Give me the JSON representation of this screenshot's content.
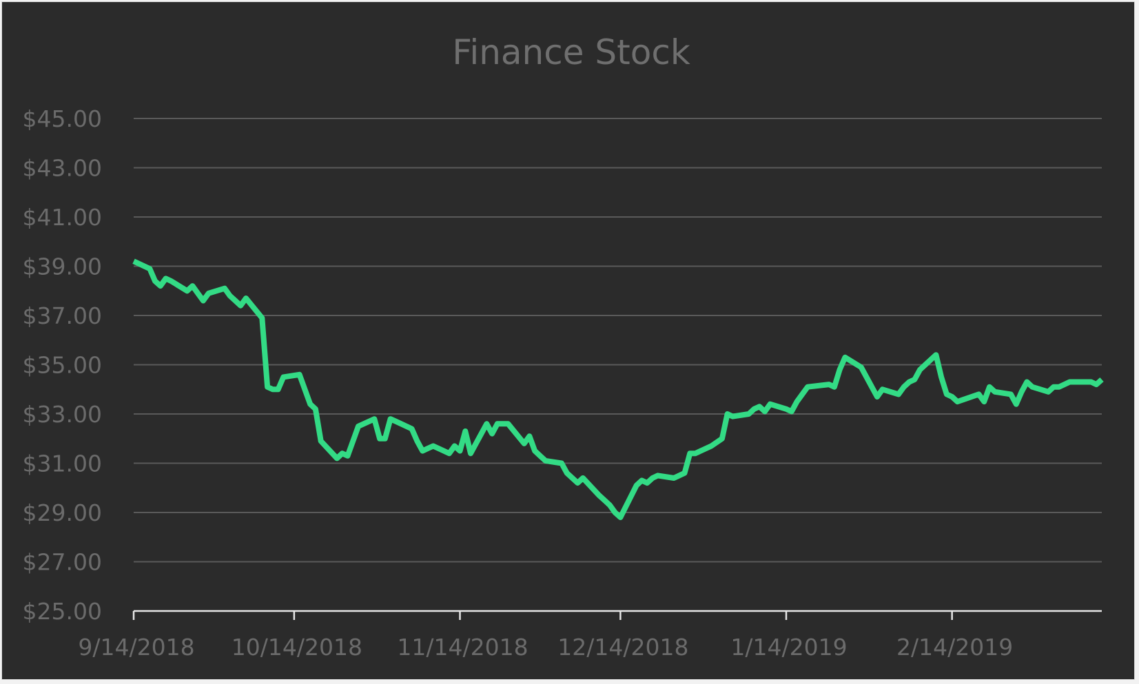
{
  "chart_data": {
    "type": "line",
    "title": "Finance Stock",
    "xlabel": "",
    "ylabel": "",
    "ylim": [
      25,
      45
    ],
    "y_ticks": [
      25,
      27,
      29,
      31,
      33,
      35,
      37,
      39,
      41,
      43,
      45
    ],
    "y_tick_labels": [
      "$25.00",
      "$27.00",
      "$29.00",
      "$31.00",
      "$33.00",
      "$35.00",
      "$37.00",
      "$39.00",
      "$41.00",
      "$43.00",
      "$45.00"
    ],
    "x_ticks": [
      "2018-09-14",
      "2018-10-14",
      "2018-11-14",
      "2018-12-14",
      "2019-01-14",
      "2019-02-14"
    ],
    "x_tick_labels": [
      "9/14/2018",
      "10/14/2018",
      "11/14/2018",
      "12/14/2018",
      "1/14/2019",
      "2/14/2019"
    ],
    "xlim": [
      "2018-09-14",
      "2019-03-14"
    ],
    "grid": true,
    "legend": "none",
    "colors": {
      "line": "#33db85",
      "background": "#2b2b2b",
      "grid": "#5a5a5a",
      "axis": "#e6e6e6",
      "text": "#6b6b6b"
    },
    "series": [
      {
        "x": [
          "2018-09-14",
          "2018-09-17",
          "2018-09-18",
          "2018-09-19",
          "2018-09-20",
          "2018-09-21",
          "2018-09-24",
          "2018-09-25",
          "2018-09-26",
          "2018-09-27",
          "2018-09-28",
          "2018-10-01",
          "2018-10-02",
          "2018-10-03",
          "2018-10-04",
          "2018-10-05",
          "2018-10-08",
          "2018-10-09",
          "2018-10-10",
          "2018-10-11",
          "2018-10-12",
          "2018-10-15",
          "2018-10-16",
          "2018-10-17",
          "2018-10-18",
          "2018-10-19",
          "2018-10-22",
          "2018-10-23",
          "2018-10-24",
          "2018-10-25",
          "2018-10-26",
          "2018-10-29",
          "2018-10-30",
          "2018-10-31",
          "2018-11-01",
          "2018-11-02",
          "2018-11-05",
          "2018-11-06",
          "2018-11-07",
          "2018-11-08",
          "2018-11-09",
          "2018-11-12",
          "2018-11-13",
          "2018-11-14",
          "2018-11-15",
          "2018-11-16",
          "2018-11-19",
          "2018-11-20",
          "2018-11-21",
          "2018-11-23",
          "2018-11-26",
          "2018-11-27",
          "2018-11-28",
          "2018-11-29",
          "2018-11-30",
          "2018-12-03",
          "2018-12-04",
          "2018-12-06",
          "2018-12-07",
          "2018-12-10",
          "2018-12-11",
          "2018-12-12",
          "2018-12-13",
          "2018-12-14",
          "2018-12-17",
          "2018-12-18",
          "2018-12-19",
          "2018-12-20",
          "2018-12-21",
          "2018-12-24",
          "2018-12-26",
          "2018-12-27",
          "2018-12-28",
          "2018-12-31",
          "2019-01-02",
          "2019-01-03",
          "2019-01-04",
          "2019-01-07",
          "2019-01-08",
          "2019-01-09",
          "2019-01-10",
          "2019-01-11",
          "2019-01-14",
          "2019-01-15",
          "2019-01-16",
          "2019-01-17",
          "2019-01-18",
          "2019-01-22",
          "2019-01-23",
          "2019-01-24",
          "2019-01-25",
          "2019-01-28",
          "2019-01-29",
          "2019-01-30",
          "2019-01-31",
          "2019-02-01",
          "2019-02-04",
          "2019-02-05",
          "2019-02-06",
          "2019-02-07",
          "2019-02-08",
          "2019-02-11",
          "2019-02-12",
          "2019-02-13",
          "2019-02-14",
          "2019-02-15",
          "2019-02-19",
          "2019-02-20",
          "2019-02-21",
          "2019-02-22",
          "2019-02-25",
          "2019-02-26",
          "2019-02-27",
          "2019-02-28",
          "2019-03-01",
          "2019-03-04",
          "2019-03-05",
          "2019-03-06",
          "2019-03-07",
          "2019-03-08",
          "2019-03-11",
          "2019-03-12",
          "2019-03-13",
          "2019-03-14"
        ],
        "values": [
          39.2,
          38.9,
          38.4,
          38.2,
          38.5,
          38.4,
          38.0,
          38.2,
          37.9,
          37.6,
          37.9,
          38.1,
          37.8,
          37.6,
          37.4,
          37.7,
          36.9,
          34.1,
          34.0,
          34.0,
          34.5,
          34.6,
          34.0,
          33.4,
          33.2,
          31.9,
          31.2,
          31.4,
          31.3,
          31.9,
          32.5,
          32.8,
          32.0,
          32.0,
          32.8,
          32.7,
          32.4,
          31.9,
          31.5,
          31.6,
          31.7,
          31.4,
          31.7,
          31.5,
          32.3,
          31.4,
          32.6,
          32.2,
          32.6,
          32.6,
          31.8,
          32.1,
          31.5,
          31.3,
          31.1,
          31.0,
          30.6,
          30.2,
          30.4,
          29.7,
          29.5,
          29.3,
          29.0,
          28.8,
          30.1,
          30.3,
          30.2,
          30.4,
          30.5,
          30.4,
          30.6,
          31.4,
          31.4,
          31.7,
          32.0,
          33.0,
          32.9,
          33.0,
          33.2,
          33.3,
          33.1,
          33.4,
          33.2,
          33.1,
          33.5,
          33.8,
          34.1,
          34.2,
          34.1,
          34.8,
          35.3,
          34.9,
          34.5,
          34.1,
          33.7,
          34.0,
          33.8,
          34.1,
          34.3,
          34.4,
          34.8,
          35.4,
          34.5,
          33.8,
          33.7,
          33.5,
          33.8,
          33.5,
          34.1,
          33.9,
          33.8,
          33.4,
          33.9,
          34.3,
          34.1,
          33.9,
          34.1,
          34.1,
          34.2,
          34.3,
          34.3,
          34.3,
          34.2,
          34.4
        ]
      }
    ]
  }
}
